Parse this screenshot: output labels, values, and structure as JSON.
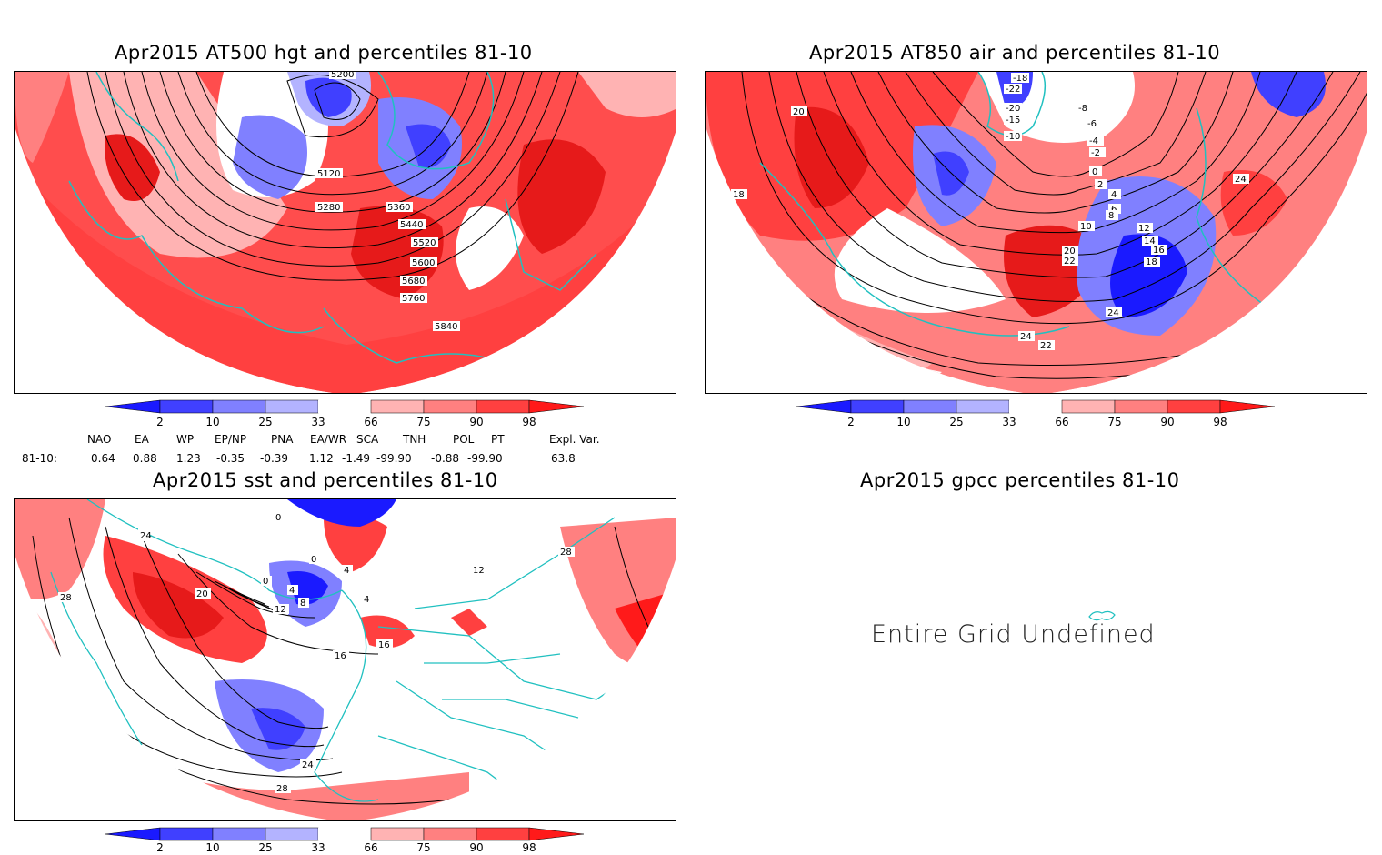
{
  "panels": {
    "hgt_title": "Apr2015 AT500 hgt and percentiles 81-10",
    "air_title": "Apr2015 AT850 air and percentiles 81-10",
    "sst_title": "Apr2015 sst and percentiles 81-10",
    "gpcc_title": "Apr2015 gpcc percentiles 81-10",
    "gpcc_message": "Entire Grid Undefined"
  },
  "colorbar": {
    "labels": [
      "2",
      "10",
      "25",
      "33",
      "66",
      "75",
      "90",
      "98"
    ],
    "colors": [
      "#1a1aff",
      "#4040ff",
      "#8080ff",
      "#b3b3ff",
      "#ffffff",
      "#ffb3b3",
      "#ff8080",
      "#ff4040",
      "#ff1a1a"
    ]
  },
  "indices": {
    "headers": [
      "NAO",
      "EA",
      "WP",
      "EP/NP",
      "PNA",
      "EA/WR",
      "SCA",
      "TNH",
      "POL",
      "PT",
      "Expl. Var."
    ],
    "row_label": "81-10:",
    "values": [
      "0.64",
      "0.88",
      "1.23",
      "-0.35",
      "-0.39",
      "1.12",
      "-1.49",
      "-99.90",
      "-0.88",
      "-99.90",
      "63.8"
    ]
  },
  "contour_labels": {
    "hgt": [
      "5200",
      "5120",
      "5280",
      "5360",
      "5440",
      "5520",
      "5600",
      "5680",
      "5760",
      "5840"
    ],
    "air": [
      "-18",
      "-22",
      "-20",
      "-15",
      "-10",
      "-8",
      "-6",
      "-4",
      "-2",
      "0",
      "2",
      "4",
      "6",
      "8",
      "10",
      "12",
      "14",
      "16",
      "18",
      "20",
      "22",
      "24",
      "18",
      "20",
      "24",
      "22",
      "24"
    ],
    "sst": [
      "0",
      "24",
      "0",
      "4",
      "0",
      "4",
      "8",
      "12",
      "20",
      "16",
      "28",
      "4",
      "12",
      "16",
      "28",
      "24",
      "28"
    ]
  }
}
